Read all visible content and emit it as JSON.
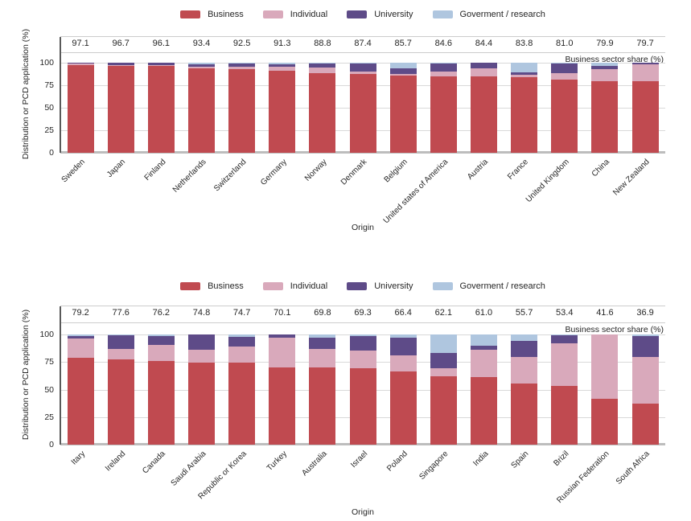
{
  "colors": {
    "business": "#c04a50",
    "individual": "#d9a9bb",
    "university": "#5e4b88",
    "government": "#afc6df",
    "grid": "#d9d9d9",
    "zero_axis": "#bdbdbd",
    "y_axis": "#595959"
  },
  "legend": {
    "items": [
      {
        "label": "Business",
        "key": "business"
      },
      {
        "label": "Individual",
        "key": "individual"
      },
      {
        "label": "University",
        "key": "university"
      },
      {
        "label": "Goverment / research",
        "key": "government"
      }
    ]
  },
  "chart_data": [
    {
      "type": "bar",
      "stacked": true,
      "ylabel": "Distribution or PCD application (%)",
      "xlabel": "Origin",
      "right_label": "Business sector share (%)",
      "ylim": [
        0,
        100
      ],
      "yticks": [
        0,
        25,
        50,
        75,
        100
      ],
      "grid": true,
      "legend_position": "top",
      "categories": [
        "Sweden",
        "Japan",
        "Finland",
        "Netherlands",
        "Switzerland",
        "Germany",
        "Norway",
        "Denmark",
        "Belgium",
        "United states of America",
        "Austria",
        "France",
        "United Kingdom",
        "China",
        "New Zealand"
      ],
      "business_share_labels": [
        "97.1",
        "96.7",
        "96.1",
        "93.4",
        "92.5",
        "91.3",
        "88.8",
        "87.4",
        "85.7",
        "84.6",
        "84.4",
        "83.8",
        "81.0",
        "79.9",
        "79.7"
      ],
      "series": [
        {
          "name": "Business",
          "key": "business",
          "values": [
            97.1,
            96.7,
            96.1,
            93.4,
            92.5,
            91.3,
            88.8,
            87.4,
            85.7,
            84.6,
            84.4,
            83.8,
            81.0,
            79.9,
            79.7
          ]
        },
        {
          "name": "Individual",
          "key": "individual",
          "values": [
            2.4,
            0.7,
            1.6,
            1.8,
            3.2,
            4.4,
            5.5,
            3.1,
            2.1,
            5.9,
            9.2,
            3.0,
            7.0,
            12.6,
            18.2
          ]
        },
        {
          "name": "University",
          "key": "university",
          "values": [
            0.3,
            2.3,
            1.9,
            2.8,
            3.6,
            2.3,
            5.2,
            9.0,
            5.8,
            9.0,
            6.0,
            2.5,
            11.0,
            4.3,
            1.8
          ]
        },
        {
          "name": "Goverment / research",
          "key": "government",
          "values": [
            0.2,
            0.3,
            0.4,
            2.0,
            0.7,
            2.0,
            0.5,
            0.5,
            6.4,
            0.5,
            0.4,
            10.7,
            1.0,
            3.2,
            0.3
          ]
        }
      ]
    },
    {
      "type": "bar",
      "stacked": true,
      "ylabel": "Distribution or PCD application (%)",
      "xlabel": "Origin",
      "right_label": "Business sector share (%)",
      "ylim": [
        0,
        100
      ],
      "yticks": [
        0,
        25,
        50,
        75,
        100
      ],
      "grid": true,
      "legend_position": "top",
      "categories": [
        "Itary",
        "Ireland",
        "Canada",
        "Saudi Arabia",
        "Republic or Korea",
        "Turkey",
        "Australia",
        "Israel",
        "Poland",
        "Singapore",
        "India",
        "Spain",
        "Brizil",
        "Russian Federation",
        "South Africa"
      ],
      "business_share_labels": [
        "79.2",
        "77.6",
        "76.2",
        "74.8",
        "74.7",
        "70.1",
        "69.8",
        "69.3",
        "66.4",
        "62.1",
        "61.0",
        "55.7",
        "53.4",
        "41.6",
        "36.9"
      ],
      "series": [
        {
          "name": "Business",
          "key": "business",
          "values": [
            79.2,
            77.6,
            76.2,
            74.8,
            74.7,
            70.1,
            69.8,
            69.3,
            66.4,
            62.1,
            61.0,
            55.7,
            53.4,
            41.6,
            36.9
          ]
        },
        {
          "name": "Individual",
          "key": "individual",
          "values": [
            16.8,
            9.4,
            14.5,
            11.5,
            14.1,
            26.7,
            16.8,
            16.0,
            15.0,
            7.5,
            25.5,
            24.1,
            38.5,
            58.4,
            43.0
          ]
        },
        {
          "name": "University",
          "key": "university",
          "values": [
            2.5,
            12.5,
            7.5,
            13.7,
            9.2,
            2.9,
            10.2,
            13.5,
            15.4,
            13.4,
            3.0,
            14.6,
            7.6,
            0.0,
            18.4
          ]
        },
        {
          "name": "Goverment / research",
          "key": "government",
          "values": [
            1.5,
            0.5,
            1.8,
            0.0,
            2.0,
            0.3,
            3.2,
            1.2,
            3.2,
            17.0,
            10.5,
            5.6,
            0.5,
            0.0,
            1.7
          ]
        }
      ]
    }
  ]
}
